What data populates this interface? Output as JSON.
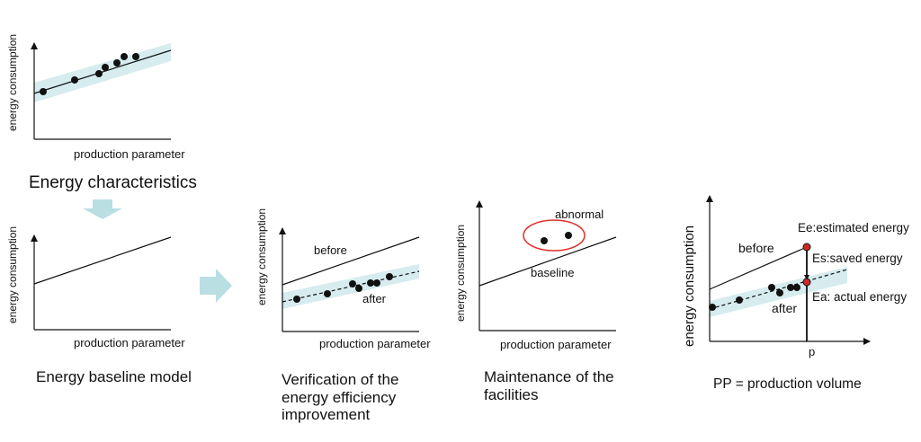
{
  "panel1": {
    "ylabel": "energy consumption",
    "xlabel": "production parameter",
    "caption": "Energy characteristics"
  },
  "panel2": {
    "ylabel": "energy consumption",
    "xlabel": "production parameter",
    "caption": "Energy baseline model"
  },
  "panel3": {
    "ylabel": "energy consumption",
    "xlabel": "production parameter",
    "label_before": "before",
    "label_after": "after",
    "caption_lines": [
      "Verification of the",
      "energy efficiency",
      "improvement"
    ]
  },
  "panel4": {
    "ylabel": "energy consumption",
    "xlabel": "production parameter",
    "label_abnormal": "abnormal",
    "label_baseline": "baseline",
    "caption_lines": [
      "Maintenance of the",
      "facilities"
    ]
  },
  "panel5": {
    "ylabel": "energy consumption",
    "label_before": "before",
    "label_after": "after",
    "label_ee": "Ee:estimated energy",
    "label_es": "Es:saved energy",
    "label_ea": "Ea: actual energy",
    "label_p": "p",
    "caption": "PP = production volume"
  },
  "colors": {
    "band": "#d6ecef",
    "arrow": "#b9dfe3",
    "point": "#111111",
    "abnormal_ring": "#e0302a",
    "marker_red": "#cc2a2a"
  }
}
